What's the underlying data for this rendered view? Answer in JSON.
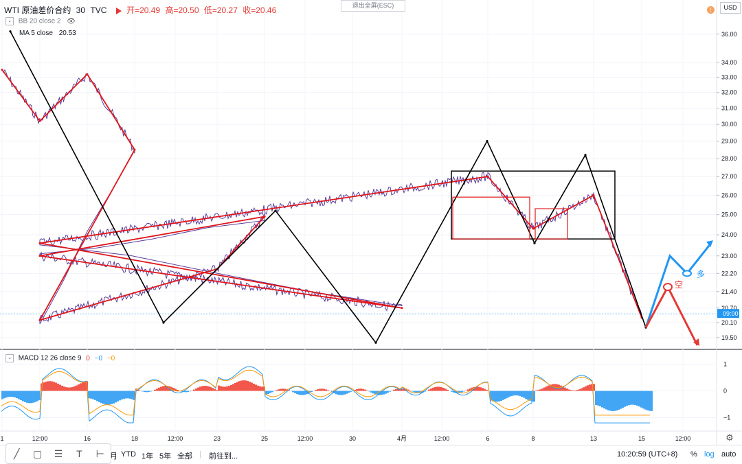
{
  "header": {
    "symbol": "WTI 原油差价合约",
    "interval": "30",
    "source": "TVC",
    "open": "开=20.49",
    "high": "高=20.50",
    "low": "低=20.27",
    "close": "收=20.46",
    "exit_fullscreen": "退出全屏(ESC)",
    "currency": "USD",
    "alert_badge": "!"
  },
  "indicators": {
    "bb": "BB 20 close 2",
    "ma": "MA 5 close",
    "ma_value": "20.53",
    "macd": "MACD 12 26 close 9",
    "macd_v1": "0",
    "macd_v2": "−0",
    "macd_v3": "−0"
  },
  "price_axis": {
    "ticks": [
      36.0,
      34.0,
      33.0,
      32.0,
      31.0,
      30.0,
      29.0,
      28.0,
      27.0,
      26.0,
      25.0,
      24.0,
      23.0,
      22.2,
      21.4,
      20.7,
      20.1,
      19.5
    ],
    "tick_labels": [
      "36.00",
      "34.00",
      "33.00",
      "32.00",
      "31.00",
      "30.00",
      "29.00",
      "28.00",
      "27.00",
      "26.00",
      "25.00",
      "24.00",
      "23.00",
      "22.20",
      "21.40",
      "20.70",
      "20.10",
      "19.50"
    ],
    "current_label": "09:00",
    "scale": "log"
  },
  "macd_axis": {
    "ticks": [
      1,
      0,
      -1
    ],
    "tick_labels": [
      "1",
      "0",
      "−1"
    ]
  },
  "time_axis": {
    "labels": [
      "1",
      "12:00",
      "16",
      "18",
      "12:00",
      "23",
      "25",
      "12:00",
      "30",
      "4月",
      "12:00",
      "6",
      "8",
      "13",
      "15",
      "12:00"
    ]
  },
  "annotations": {
    "short_label": "空",
    "long_label": "多"
  },
  "bottom_bar": {
    "range_month": "月",
    "ytd": "YTD",
    "y1": "1年",
    "y5": "5年",
    "all": "全部",
    "goto": "前往到...",
    "time": "10:20:59 (UTC+8)",
    "percent": "%",
    "log": "log",
    "auto": "auto"
  },
  "colors": {
    "zigzag_black": "#000000",
    "zigzag_red": "#e0161b",
    "candles": "#5b3d9a",
    "long_arrow": "#2196f3",
    "short_arrow": "#e53935",
    "macd_up": "#ef3b2c",
    "macd_down": "#2196f3"
  },
  "chart_data": {
    "type": "line",
    "y_scale": "log",
    "series": [
      {
        "x": [
          "1",
          "12:00",
          "16",
          "18",
          "12:00",
          "23",
          "25",
          "12:00",
          "30",
          "4月",
          "12:00",
          "6",
          "8",
          "13",
          "15"
        ],
        "y": [
          33.5,
          30.2,
          33.2,
          28.5,
          20.2,
          22.4,
          24.9,
          23.0,
          21.0,
          20.7,
          23.6,
          27.0,
          24.3,
          26.0,
          20.3
        ]
      }
    ],
    "major_pivots": [
      {
        "x": "1",
        "y": 36.2
      },
      {
        "x": "18",
        "y": 20.1
      },
      {
        "x": "25",
        "y": 25.2
      },
      {
        "x": "30",
        "y": 19.3
      },
      {
        "x": "6",
        "y": 29.0
      },
      {
        "x": "8",
        "y": 23.6
      },
      {
        "x": "13",
        "y": 28.2
      },
      {
        "x": "15",
        "y": 19.9
      }
    ],
    "consolidation_box": {
      "high": 27.3,
      "low": 23.8
    },
    "ylim": [
      19.2,
      37.0
    ],
    "macd_ylim": [
      -1.3,
      1.3
    ]
  }
}
